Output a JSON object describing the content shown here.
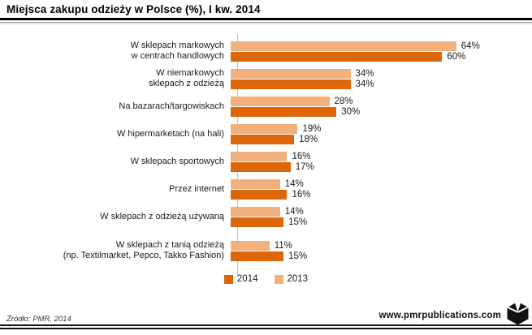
{
  "header": {
    "title": "Miejsca zakupu odzieży w Polsce (%), I kw. 2014"
  },
  "legend": {
    "items": [
      {
        "label": "2014",
        "color": "#DD6708"
      },
      {
        "label": "2013",
        "color": "#F2B17C"
      }
    ]
  },
  "chart_data": {
    "type": "bar",
    "orientation": "horizontal",
    "title": "Miejsca zakupu odzieży w Polsce (%), I kw. 2014",
    "unit": "%",
    "value_suffix": "%",
    "xlim": [
      0,
      70
    ],
    "grid": false,
    "legend_position": "bottom-center",
    "bar_order_note": "top bar of each pair = 2013 (light), bottom bar = 2014 (dark)",
    "categories": [
      "W sklepach markowych\nw centrach handlowych",
      "W niemarkowych\nsklepach z odzieżą",
      "Na bazarach/targowiskach",
      "W hipermarketach (na hali)",
      "W sklepach sportowych",
      "Przez internet",
      "W sklepach z odzieżą używaną",
      "W sklepach z tanią odzieżą\n(np. Textilmarket, Pepco, Takko Fashion)"
    ],
    "series": [
      {
        "name": "2013",
        "color": "#F2B17C",
        "values": [
          64,
          34,
          28,
          19,
          16,
          14,
          14,
          11
        ]
      },
      {
        "name": "2014",
        "color": "#DD6708",
        "values": [
          60,
          34,
          30,
          18,
          17,
          16,
          15,
          15
        ]
      }
    ]
  },
  "footer": {
    "source": "Źródło: PMR, 2014",
    "website": "www.pmrpublications.com",
    "logo": "pmr-cube-logo"
  },
  "colors": {
    "bar_2014": "#DD6708",
    "bar_2013": "#F2B17C",
    "axis_line": "#BFBFBF",
    "rule": "#000000"
  }
}
